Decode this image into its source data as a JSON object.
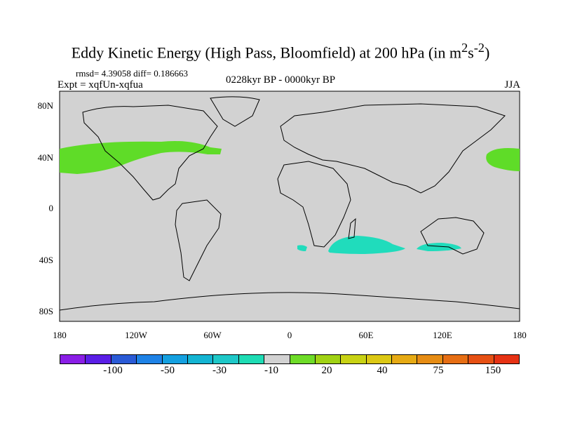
{
  "title": "Eddy Kinetic Energy (High Pass, Bloomfield) at 200 hPa (in m",
  "title_sup1": "2",
  "title_mid": "s",
  "title_sup2": "-2",
  "title_end": ")",
  "stats": "rmsd= 4.39058  diff= 0.186663",
  "expt": "Expt = xqfUn-xqfua",
  "period": "0228kyr BP - 0000kyr BP",
  "season": "JJA",
  "lat_labels": [
    "80N",
    "40N",
    "0",
    "40S",
    "80S"
  ],
  "lon_labels": [
    "180",
    "120W",
    "60W",
    "0",
    "60E",
    "120E",
    "180"
  ],
  "colorbar": {
    "colors": [
      "#8a1ee6",
      "#5a1ee6",
      "#2a5ad6",
      "#1e82e6",
      "#14a0e0",
      "#14b4d2",
      "#1ec8c8",
      "#1edcb4",
      "#d2d2d2",
      "#6edc28",
      "#a0d214",
      "#c8d214",
      "#dcc814",
      "#e6aa14",
      "#e68c14",
      "#e66e14",
      "#e65014",
      "#e63214"
    ],
    "labels": [
      "-100",
      "-50",
      "-30",
      "-10",
      "20",
      "40",
      "75",
      "150"
    ]
  },
  "colors": {
    "land_ocean": "#d2d2d2",
    "positive": "#5fdc28",
    "negative": "#20dcbc"
  }
}
